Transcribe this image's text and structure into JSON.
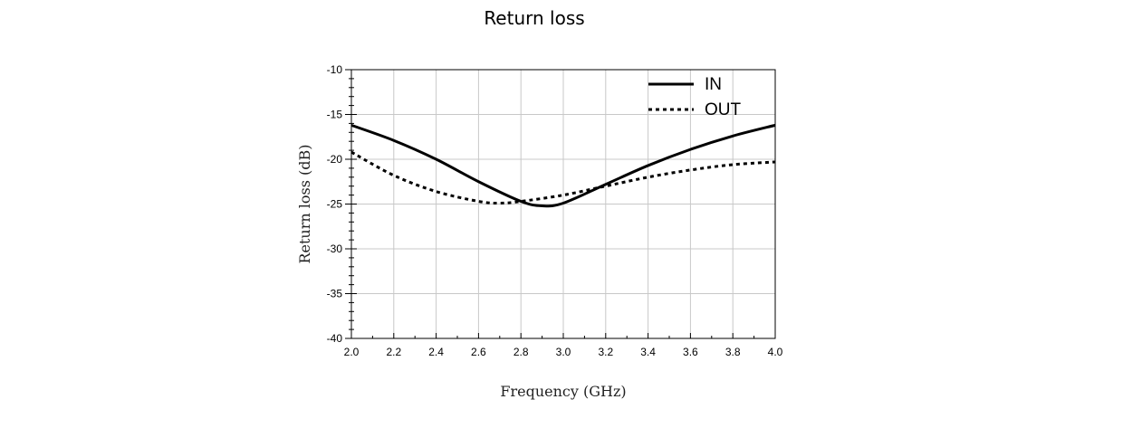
{
  "chart_data": {
    "type": "line",
    "title": "Return loss",
    "xlabel": "Frequency (GHz)",
    "ylabel": "Return loss (dB)",
    "xlim": [
      2.0,
      4.0
    ],
    "ylim": [
      -40,
      -10
    ],
    "x_ticks": [
      "2.0",
      "2.2",
      "2.4",
      "2.6",
      "2.8",
      "3.0",
      "3.2",
      "3.4",
      "3.6",
      "3.8",
      "4.0"
    ],
    "y_ticks": [
      "-10",
      "-15",
      "-20",
      "-25",
      "-30",
      "-35",
      "-40"
    ],
    "grid": true,
    "legend_position": "top-right",
    "series": [
      {
        "name": "IN",
        "style": "solid",
        "color": "#000000",
        "x": [
          2.0,
          2.2,
          2.4,
          2.6,
          2.8,
          2.9,
          3.0,
          3.2,
          3.4,
          3.6,
          3.8,
          4.0
        ],
        "y": [
          -16.2,
          -17.9,
          -20.0,
          -22.5,
          -24.7,
          -25.2,
          -24.9,
          -22.8,
          -20.7,
          -18.9,
          -17.4,
          -16.2
        ]
      },
      {
        "name": "OUT",
        "style": "dotted",
        "color": "#000000",
        "x": [
          2.0,
          2.2,
          2.4,
          2.6,
          2.7,
          2.8,
          3.0,
          3.2,
          3.4,
          3.6,
          3.8,
          4.0
        ],
        "y": [
          -19.2,
          -21.8,
          -23.6,
          -24.7,
          -24.9,
          -24.7,
          -24.0,
          -23.0,
          -22.0,
          -21.2,
          -20.6,
          -20.3
        ]
      }
    ]
  }
}
